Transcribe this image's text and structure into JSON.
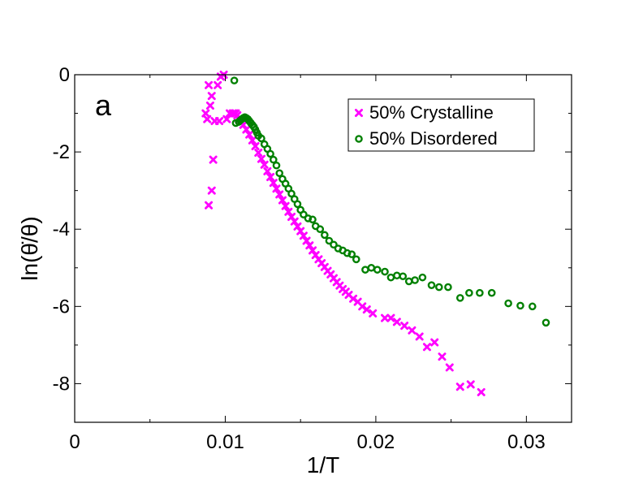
{
  "chart_data": {
    "type": "scatter",
    "panel_label": "a",
    "xlabel": "1/T",
    "ylabel": "ln(θ̇/θ)",
    "xlim": [
      0,
      0.033
    ],
    "ylim": [
      -9,
      0
    ],
    "x_major_ticks": [
      0,
      0.01,
      0.02,
      0.03
    ],
    "x_tick_labels": [
      "0",
      "0.01",
      "0.02",
      "0.03"
    ],
    "x_minor_ticks": [
      0.005,
      0.015,
      0.025
    ],
    "y_major_ticks": [
      0,
      -2,
      -4,
      -6,
      -8
    ],
    "y_tick_labels": [
      "0",
      "-2",
      "-4",
      "-6",
      "-8"
    ],
    "y_minor_ticks": [
      -1,
      -3,
      -5,
      -7
    ],
    "grid": false,
    "legend_position": "top-right",
    "series": [
      {
        "name": "50% Crystalline",
        "marker": "x",
        "color": "#ff00ff",
        "points": [
          [
            0.0087,
            -1.0
          ],
          [
            0.0088,
            -1.15
          ],
          [
            0.0089,
            -0.27
          ],
          [
            0.0089,
            -3.38
          ],
          [
            0.009,
            -0.8
          ],
          [
            0.0091,
            -0.55
          ],
          [
            0.0091,
            -3.0
          ],
          [
            0.0092,
            -2.2
          ],
          [
            0.0093,
            -1.2
          ],
          [
            0.0095,
            -0.27
          ],
          [
            0.0096,
            -1.2
          ],
          [
            0.0097,
            -0.05
          ],
          [
            0.0099,
            0.0
          ],
          [
            0.0101,
            -1.15
          ],
          [
            0.0103,
            -1.0
          ],
          [
            0.0105,
            -1.0
          ],
          [
            0.0106,
            -1.0
          ],
          [
            0.0107,
            -1.0
          ],
          [
            0.0108,
            -1.05
          ],
          [
            0.0109,
            -1.15
          ],
          [
            0.011,
            -1.2
          ],
          [
            0.0112,
            -1.3
          ],
          [
            0.0114,
            -1.42
          ],
          [
            0.0116,
            -1.55
          ],
          [
            0.0118,
            -1.7
          ],
          [
            0.012,
            -1.85
          ],
          [
            0.0122,
            -2.02
          ],
          [
            0.0124,
            -2.18
          ],
          [
            0.0126,
            -2.33
          ],
          [
            0.0128,
            -2.5
          ],
          [
            0.013,
            -2.65
          ],
          [
            0.0132,
            -2.8
          ],
          [
            0.0134,
            -2.95
          ],
          [
            0.0136,
            -3.1
          ],
          [
            0.0138,
            -3.25
          ],
          [
            0.014,
            -3.4
          ],
          [
            0.0142,
            -3.55
          ],
          [
            0.0144,
            -3.68
          ],
          [
            0.0146,
            -3.8
          ],
          [
            0.0148,
            -3.93
          ],
          [
            0.015,
            -4.05
          ],
          [
            0.0152,
            -4.17
          ],
          [
            0.0154,
            -4.3
          ],
          [
            0.0156,
            -4.42
          ],
          [
            0.0158,
            -4.55
          ],
          [
            0.016,
            -4.67
          ],
          [
            0.0162,
            -4.78
          ],
          [
            0.0164,
            -4.88
          ],
          [
            0.0166,
            -4.98
          ],
          [
            0.0168,
            -5.08
          ],
          [
            0.017,
            -5.17
          ],
          [
            0.0172,
            -5.27
          ],
          [
            0.0174,
            -5.37
          ],
          [
            0.0176,
            -5.46
          ],
          [
            0.0178,
            -5.55
          ],
          [
            0.018,
            -5.62
          ],
          [
            0.0182,
            -5.7
          ],
          [
            0.0185,
            -5.8
          ],
          [
            0.0188,
            -5.88
          ],
          [
            0.0191,
            -6.0
          ],
          [
            0.0194,
            -6.08
          ],
          [
            0.0198,
            -6.18
          ],
          [
            0.0206,
            -6.3
          ],
          [
            0.021,
            -6.3
          ],
          [
            0.0214,
            -6.4
          ],
          [
            0.0219,
            -6.5
          ],
          [
            0.0224,
            -6.62
          ],
          [
            0.0229,
            -6.78
          ],
          [
            0.0234,
            -7.05
          ],
          [
            0.0239,
            -6.93
          ],
          [
            0.0244,
            -7.3
          ],
          [
            0.0249,
            -7.58
          ],
          [
            0.0256,
            -8.08
          ],
          [
            0.0263,
            -8.02
          ],
          [
            0.027,
            -8.22
          ]
        ]
      },
      {
        "name": "50% Disordered",
        "marker": "o",
        "color": "#008000",
        "points": [
          [
            0.0106,
            -0.15
          ],
          [
            0.0107,
            -1.25
          ],
          [
            0.0109,
            -1.22
          ],
          [
            0.011,
            -1.18
          ],
          [
            0.0111,
            -1.15
          ],
          [
            0.0112,
            -1.12
          ],
          [
            0.0113,
            -1.1
          ],
          [
            0.0114,
            -1.12
          ],
          [
            0.0115,
            -1.15
          ],
          [
            0.0116,
            -1.2
          ],
          [
            0.0117,
            -1.25
          ],
          [
            0.0118,
            -1.3
          ],
          [
            0.0119,
            -1.35
          ],
          [
            0.012,
            -1.42
          ],
          [
            0.0121,
            -1.5
          ],
          [
            0.0122,
            -1.58
          ],
          [
            0.0124,
            -1.65
          ],
          [
            0.0126,
            -1.8
          ],
          [
            0.0128,
            -1.92
          ],
          [
            0.013,
            -2.05
          ],
          [
            0.0132,
            -2.2
          ],
          [
            0.0134,
            -2.35
          ],
          [
            0.0136,
            -2.55
          ],
          [
            0.0138,
            -2.7
          ],
          [
            0.014,
            -2.82
          ],
          [
            0.0142,
            -2.95
          ],
          [
            0.0144,
            -3.08
          ],
          [
            0.0146,
            -3.22
          ],
          [
            0.0148,
            -3.35
          ],
          [
            0.015,
            -3.5
          ],
          [
            0.0152,
            -3.62
          ],
          [
            0.0155,
            -3.72
          ],
          [
            0.0158,
            -3.75
          ],
          [
            0.016,
            -3.92
          ],
          [
            0.0163,
            -4.0
          ],
          [
            0.0166,
            -4.15
          ],
          [
            0.0169,
            -4.3
          ],
          [
            0.0172,
            -4.4
          ],
          [
            0.0175,
            -4.5
          ],
          [
            0.0178,
            -4.55
          ],
          [
            0.0181,
            -4.62
          ],
          [
            0.0184,
            -4.65
          ],
          [
            0.0187,
            -4.78
          ],
          [
            0.0193,
            -5.05
          ],
          [
            0.0197,
            -5.0
          ],
          [
            0.0201,
            -5.05
          ],
          [
            0.0206,
            -5.1
          ],
          [
            0.021,
            -5.25
          ],
          [
            0.0214,
            -5.2
          ],
          [
            0.0218,
            -5.22
          ],
          [
            0.0222,
            -5.35
          ],
          [
            0.0226,
            -5.32
          ],
          [
            0.0231,
            -5.25
          ],
          [
            0.0237,
            -5.45
          ],
          [
            0.0242,
            -5.5
          ],
          [
            0.0248,
            -5.5
          ],
          [
            0.0256,
            -5.78
          ],
          [
            0.0262,
            -5.65
          ],
          [
            0.0269,
            -5.65
          ],
          [
            0.0277,
            -5.65
          ],
          [
            0.0288,
            -5.92
          ],
          [
            0.0296,
            -5.98
          ],
          [
            0.0304,
            -6.0
          ],
          [
            0.0313,
            -6.42
          ]
        ]
      }
    ]
  }
}
